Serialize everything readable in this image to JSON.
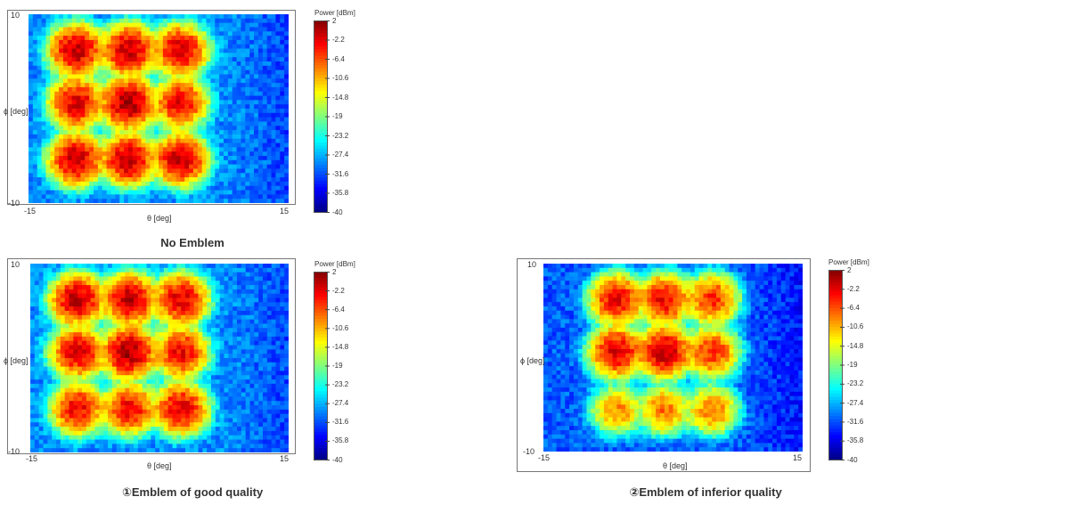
{
  "chart_data": [
    {
      "type": "heatmap",
      "title": "No Emblem",
      "xlabel": "θ [deg]",
      "ylabel": "ϕ [deg]",
      "xlim": [
        -15,
        15
      ],
      "ylim": [
        -10,
        10
      ],
      "x_ticks": [
        "-15",
        "15"
      ],
      "y_ticks": [
        "10",
        "-10"
      ],
      "colorbar": {
        "title": "Power [dBm]",
        "range": [
          -40,
          2
        ],
        "ticks": [
          "2",
          "-2.2",
          "-6.4",
          "-10.6",
          "-14.8",
          "-19",
          "-23.2",
          "-27.4",
          "-31.6",
          "-35.8",
          "-40"
        ]
      },
      "beam_grid": {
        "x_centers_deg": [
          -9.5,
          -3.5,
          2.5
        ],
        "y_centers_deg": [
          6.2,
          0.6,
          -5.4
        ],
        "peak_dbm": [
          [
            -1,
            -1,
            -2
          ],
          [
            -2,
            0,
            -3
          ],
          [
            -1,
            -1,
            -1
          ]
        ]
      },
      "background_dbm": -29
    },
    {
      "type": "heatmap",
      "title": "①Emblem of good quality",
      "xlabel": "θ [deg]",
      "ylabel": "ϕ [deg]",
      "xlim": [
        -15,
        15
      ],
      "ylim": [
        -10,
        10
      ],
      "x_ticks": [
        "-15",
        "15"
      ],
      "y_ticks": [
        "10",
        "-10"
      ],
      "colorbar": {
        "title": "Power [dBm]",
        "range": [
          -40,
          2
        ],
        "ticks": [
          "2",
          "-2.2",
          "-6.4",
          "-10.6",
          "-14.8",
          "-19",
          "-23.2",
          "-27.4",
          "-31.6",
          "-35.8",
          "-40"
        ]
      },
      "beam_grid": {
        "x_centers_deg": [
          -9.5,
          -3.5,
          2.5
        ],
        "y_centers_deg": [
          6.2,
          0.6,
          -5.4
        ],
        "peak_dbm": [
          [
            -1,
            -1,
            -2
          ],
          [
            -2,
            0,
            -3
          ],
          [
            -3,
            -3,
            -2
          ]
        ]
      },
      "background_dbm": -29
    },
    {
      "type": "heatmap",
      "title": "②Emblem of inferior quality",
      "xlabel": "θ [deg]",
      "ylabel": "ϕ [deg]",
      "xlim": [
        -15,
        15
      ],
      "ylim": [
        -10,
        10
      ],
      "x_ticks": [
        "-15",
        "15"
      ],
      "y_ticks": [
        "10",
        "-10"
      ],
      "colorbar": {
        "title": "Power [dBm]",
        "range": [
          -40,
          2
        ],
        "ticks": [
          "2",
          "-2.2",
          "-6.4",
          "-10.6",
          "-14.8",
          "-19",
          "-23.2",
          "-27.4",
          "-31.6",
          "-35.8",
          "-40"
        ]
      },
      "beam_grid": {
        "x_centers_deg": [
          -6.5,
          -1,
          4.5
        ],
        "y_centers_deg": [
          6.2,
          0.6,
          -5.6
        ],
        "peak_dbm": [
          [
            -3,
            -3,
            -5
          ],
          [
            -2,
            -1,
            -5
          ],
          [
            -9,
            -8,
            -8
          ]
        ]
      },
      "background_dbm": -31
    }
  ]
}
